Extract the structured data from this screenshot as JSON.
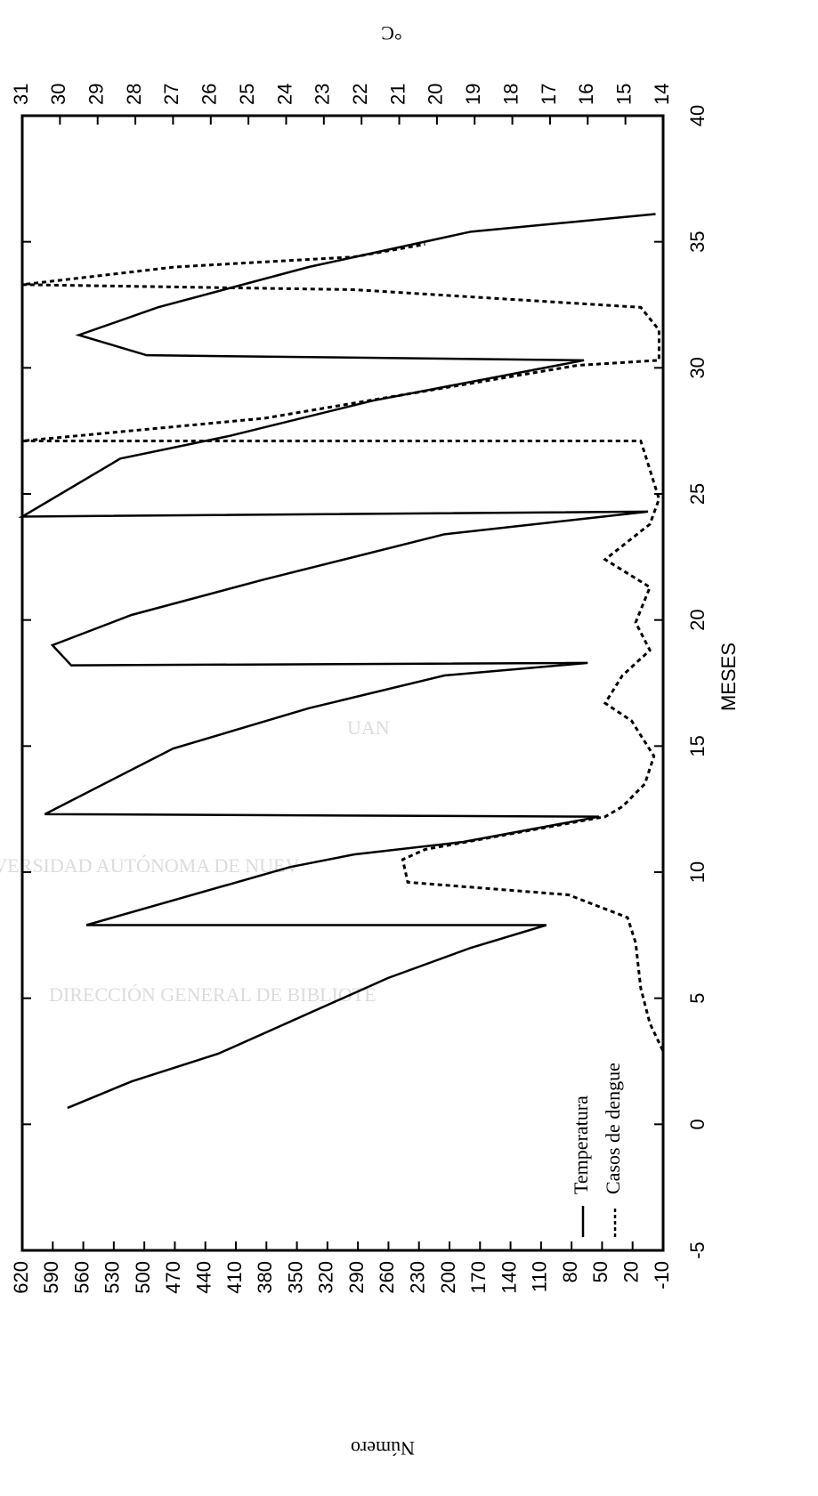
{
  "chart_data": {
    "type": "line",
    "x_label": "MESES",
    "y_label": "Número",
    "y2_label": "°C",
    "xlim": [
      -5,
      40
    ],
    "xticks": [
      -5,
      0,
      5,
      10,
      15,
      20,
      25,
      30,
      35,
      40
    ],
    "ylim": [
      -10,
      620
    ],
    "yticks": [
      -10,
      20,
      50,
      80,
      110,
      140,
      170,
      200,
      230,
      260,
      290,
      320,
      350,
      380,
      410,
      440,
      470,
      500,
      530,
      560,
      590,
      620
    ],
    "y2lim": [
      14,
      31
    ],
    "y2ticks": [
      14,
      15,
      16,
      17,
      18,
      19,
      20,
      21,
      22,
      23,
      24,
      25,
      26,
      27,
      28,
      29,
      30,
      31
    ],
    "legend": "lower-left",
    "series": [
      {
        "name": "Temperatura",
        "color": "#000000",
        "style": "solid",
        "axis": "y2",
        "x": [
          0.65,
          1.7,
          2.8,
          4.4,
          5.8,
          7.0,
          7.9,
          7.9,
          10.2,
          10.7,
          11.2,
          12.2,
          12.3,
          14.9,
          16.5,
          17.8,
          18.3,
          18.2,
          19.0,
          20.2,
          21.6,
          23.4,
          24.3,
          24.1,
          26.4,
          27.3,
          28.7,
          30.3,
          30.5,
          31.3,
          32.4,
          34.0,
          35.4,
          36.1
        ],
        "values": [
          29.8,
          28.1,
          25.8,
          23.4,
          21.3,
          19.1,
          17.1,
          29.3,
          23.9,
          22.2,
          19.3,
          15.7,
          30.4,
          27.0,
          23.4,
          19.8,
          16.0,
          29.7,
          30.2,
          28.1,
          24.6,
          19.8,
          14.4,
          31.0,
          28.4,
          25.5,
          21.7,
          16.1,
          27.7,
          29.5,
          27.4,
          23.4,
          19.1,
          14.2
        ]
      },
      {
        "name": "Casos de dengue",
        "color": "#000000",
        "style": "dashed",
        "x": [
          1.35,
          2.9,
          4.0,
          5.4,
          7.2,
          8.2,
          9.1,
          9.6,
          10.5,
          10.9,
          12.2,
          12.6,
          13.5,
          14.6,
          16.0,
          16.7,
          17.8,
          18.8,
          19.9,
          21.3,
          22.4,
          23.8,
          24.8,
          26.6,
          27.1,
          27.1,
          28.0,
          29.2,
          30.1,
          30.3,
          31.5,
          32.4,
          33.1,
          33.3,
          34.0,
          34.4,
          34.9
        ],
        "values": [
          -10,
          -10,
          3,
          12,
          17,
          25,
          83,
          241,
          246,
          224,
          47,
          30,
          8,
          -1,
          21,
          47,
          30,
          3,
          17,
          3,
          47,
          3,
          -6,
          8,
          12,
          620,
          382,
          206,
          74,
          -6,
          -6,
          12,
          294,
          620,
          470,
          294,
          224
        ]
      }
    ]
  },
  "watermark": [
    "UAN",
    "IVERSIDAD AUTÓNOMA DE NUEV",
    "DIRECCIÓN GENERAL DE BIBLIOTE"
  ]
}
